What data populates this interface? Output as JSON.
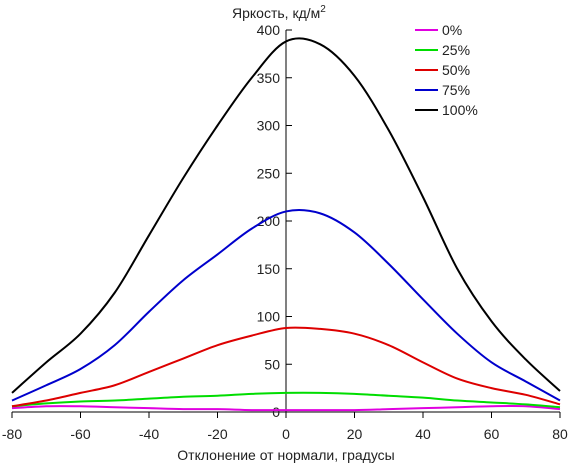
{
  "chart_data": {
    "type": "line",
    "title": "",
    "xlabel": "Отклонение от нормали, градусы",
    "ylabel": "Яркость, кд/м",
    "ylabel_sup": "2",
    "xlim": [
      -80,
      80
    ],
    "ylim": [
      0,
      400
    ],
    "xticks": [
      "-80",
      "-60",
      "-40",
      "-20",
      "0",
      "20",
      "40",
      "60",
      "80"
    ],
    "yticks": [
      "0",
      "50",
      "100",
      "150",
      "200",
      "250",
      "300",
      "350",
      "400"
    ],
    "legend_position": "top-right",
    "x": [
      -80,
      -70,
      -60,
      -50,
      -40,
      -30,
      -20,
      -10,
      0,
      10,
      20,
      30,
      40,
      50,
      60,
      70,
      80
    ],
    "series": [
      {
        "name": "0%",
        "color": "#e000e0",
        "values": [
          4,
          6,
          6,
          5,
          4,
          3,
          3,
          2,
          2,
          2,
          2,
          3,
          4,
          5,
          6,
          6,
          3
        ]
      },
      {
        "name": "25%",
        "color": "#00dd00",
        "values": [
          6,
          9,
          11,
          12,
          14,
          16,
          17,
          19,
          20,
          20,
          19,
          17,
          15,
          12,
          10,
          8,
          5
        ]
      },
      {
        "name": "50%",
        "color": "#dd0000",
        "values": [
          6,
          12,
          20,
          28,
          42,
          56,
          70,
          80,
          88,
          87,
          82,
          70,
          52,
          35,
          25,
          18,
          8
        ]
      },
      {
        "name": "75%",
        "color": "#0000cc",
        "values": [
          12,
          28,
          45,
          70,
          105,
          138,
          165,
          192,
          210,
          208,
          188,
          155,
          118,
          82,
          52,
          32,
          12
        ]
      },
      {
        "name": "100%",
        "color": "#000000",
        "values": [
          20,
          52,
          82,
          125,
          185,
          245,
          300,
          350,
          388,
          385,
          352,
          295,
          225,
          150,
          95,
          55,
          22
        ]
      }
    ]
  }
}
